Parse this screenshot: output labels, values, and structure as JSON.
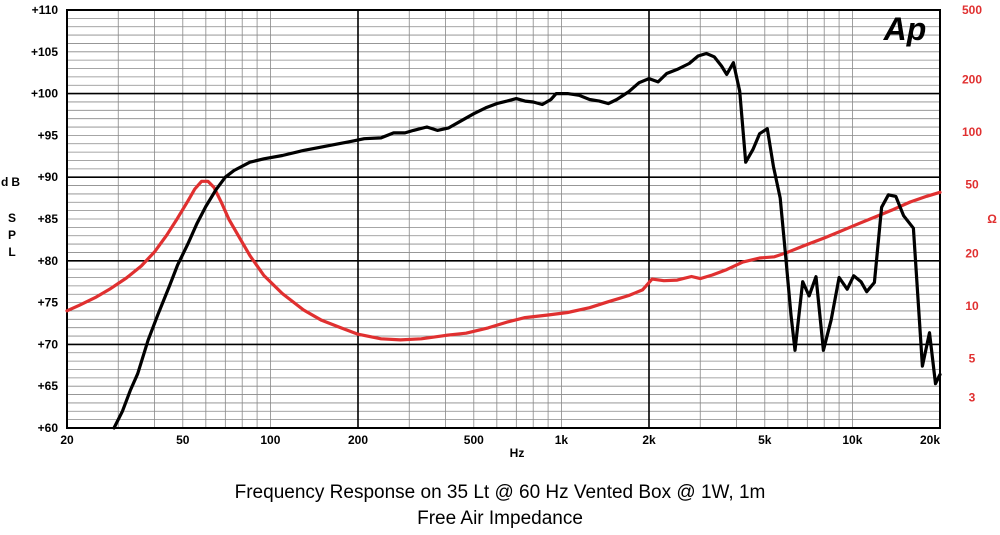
{
  "chart_data": {
    "type": "line",
    "title": "Frequency Response on 35 Lt @ 60 Hz Vented Box @ 1W, 1m",
    "subtitle": "Free Air Impedance",
    "xlabel": "Hz",
    "ylabel_left_lines": [
      "dB",
      "SPL"
    ],
    "ylabel_right": "Ω",
    "logo": "Ap",
    "x_scale": "log",
    "xlim": [
      20,
      20000
    ],
    "ylim_left": [
      60,
      110
    ],
    "ylim_right": [
      2,
      500
    ],
    "y_right_scale": "log",
    "grid": true,
    "x_tick_labels": [
      {
        "v": 20,
        "t": "20"
      },
      {
        "v": 50,
        "t": "50"
      },
      {
        "v": 100,
        "t": "100"
      },
      {
        "v": 200,
        "t": "200"
      },
      {
        "v": 500,
        "t": "500"
      },
      {
        "v": 1000,
        "t": "1k"
      },
      {
        "v": 2000,
        "t": "2k"
      },
      {
        "v": 5000,
        "t": "5k"
      },
      {
        "v": 10000,
        "t": "10k"
      },
      {
        "v": 20000,
        "t": "20k"
      }
    ],
    "y_left_tick_labels": [
      {
        "v": 110,
        "t": "+110"
      },
      {
        "v": 105,
        "t": "+105"
      },
      {
        "v": 100,
        "t": "+100"
      },
      {
        "v": 95,
        "t": "+95"
      },
      {
        "v": 90,
        "t": "+90"
      },
      {
        "v": 85,
        "t": "+85"
      },
      {
        "v": 80,
        "t": "+80"
      },
      {
        "v": 75,
        "t": "+75"
      },
      {
        "v": 70,
        "t": "+70"
      },
      {
        "v": 65,
        "t": "+65"
      },
      {
        "v": 60,
        "t": "+60"
      }
    ],
    "y_right_tick_labels": [
      {
        "v": 500,
        "t": "500"
      },
      {
        "v": 200,
        "t": "200"
      },
      {
        "v": 100,
        "t": "100"
      },
      {
        "v": 50,
        "t": "50"
      },
      {
        "v": 20,
        "t": "20"
      },
      {
        "v": 10,
        "t": "10"
      },
      {
        "v": 5,
        "t": "5"
      },
      {
        "v": 3,
        "t": "3"
      }
    ],
    "series": [
      {
        "name": "Frequency Response",
        "color": "#000000",
        "axis": "left",
        "points": [
          [
            29,
            60
          ],
          [
            31,
            62
          ],
          [
            33,
            64.5
          ],
          [
            35,
            66.5
          ],
          [
            38,
            70.5
          ],
          [
            41,
            73.5
          ],
          [
            45,
            77
          ],
          [
            48,
            79.5
          ],
          [
            52,
            82
          ],
          [
            56,
            84.5
          ],
          [
            60,
            86.5
          ],
          [
            65,
            88.5
          ],
          [
            70,
            90
          ],
          [
            75,
            90.8
          ],
          [
            85,
            91.8
          ],
          [
            95,
            92.2
          ],
          [
            110,
            92.6
          ],
          [
            130,
            93.2
          ],
          [
            160,
            93.8
          ],
          [
            190,
            94.3
          ],
          [
            210,
            94.6
          ],
          [
            240,
            94.7
          ],
          [
            265,
            95.3
          ],
          [
            290,
            95.3
          ],
          [
            310,
            95.6
          ],
          [
            345,
            96
          ],
          [
            375,
            95.6
          ],
          [
            410,
            95.9
          ],
          [
            450,
            96.7
          ],
          [
            500,
            97.6
          ],
          [
            550,
            98.3
          ],
          [
            600,
            98.8
          ],
          [
            650,
            99.1
          ],
          [
            700,
            99.4
          ],
          [
            750,
            99.1
          ],
          [
            800,
            99
          ],
          [
            860,
            98.7
          ],
          [
            920,
            99.3
          ],
          [
            960,
            100
          ],
          [
            1050,
            100
          ],
          [
            1150,
            99.8
          ],
          [
            1250,
            99.3
          ],
          [
            1350,
            99.1
          ],
          [
            1450,
            98.8
          ],
          [
            1550,
            99.3
          ],
          [
            1700,
            100.2
          ],
          [
            1850,
            101.3
          ],
          [
            2000,
            101.8
          ],
          [
            2150,
            101.4
          ],
          [
            2300,
            102.4
          ],
          [
            2500,
            102.9
          ],
          [
            2750,
            103.6
          ],
          [
            2950,
            104.5
          ],
          [
            3150,
            104.8
          ],
          [
            3350,
            104.4
          ],
          [
            3550,
            103.3
          ],
          [
            3700,
            102.3
          ],
          [
            3900,
            103.7
          ],
          [
            4100,
            100.3
          ],
          [
            4300,
            91.8
          ],
          [
            4550,
            93.3
          ],
          [
            4800,
            95.2
          ],
          [
            5100,
            95.8
          ],
          [
            5350,
            91.3
          ],
          [
            5650,
            87.5
          ],
          [
            5900,
            80.5
          ],
          [
            6150,
            73.5
          ],
          [
            6350,
            69.3
          ],
          [
            6750,
            77.5
          ],
          [
            7100,
            75.8
          ],
          [
            7500,
            78.1
          ],
          [
            7950,
            69.3
          ],
          [
            8450,
            72.9
          ],
          [
            9000,
            78
          ],
          [
            9600,
            76.6
          ],
          [
            10100,
            78.2
          ],
          [
            10700,
            77.5
          ],
          [
            11200,
            76.3
          ],
          [
            11900,
            77.4
          ],
          [
            12600,
            86.4
          ],
          [
            13300,
            87.9
          ],
          [
            14100,
            87.7
          ],
          [
            15000,
            85.4
          ],
          [
            16200,
            83.9
          ],
          [
            17400,
            67.4
          ],
          [
            18400,
            71.4
          ],
          [
            19300,
            65.3
          ],
          [
            20000,
            66.4
          ]
        ]
      },
      {
        "name": "Free Air Impedance",
        "color": "#e03030",
        "axis": "right",
        "points": [
          [
            20,
            9.4
          ],
          [
            22,
            10.1
          ],
          [
            25,
            11.2
          ],
          [
            28,
            12.5
          ],
          [
            32,
            14.5
          ],
          [
            36,
            17
          ],
          [
            40,
            20.5
          ],
          [
            44,
            25.5
          ],
          [
            48,
            32
          ],
          [
            52,
            40
          ],
          [
            55,
            47
          ],
          [
            58,
            52
          ],
          [
            61,
            52
          ],
          [
            64,
            48
          ],
          [
            68,
            39
          ],
          [
            72,
            31.5
          ],
          [
            78,
            25
          ],
          [
            85,
            19.5
          ],
          [
            95,
            15
          ],
          [
            110,
            11.8
          ],
          [
            130,
            9.5
          ],
          [
            150,
            8.3
          ],
          [
            175,
            7.5
          ],
          [
            200,
            6.9
          ],
          [
            240,
            6.5
          ],
          [
            280,
            6.4
          ],
          [
            330,
            6.5
          ],
          [
            400,
            6.8
          ],
          [
            470,
            7
          ],
          [
            560,
            7.5
          ],
          [
            650,
            8.1
          ],
          [
            750,
            8.6
          ],
          [
            900,
            8.9
          ],
          [
            1050,
            9.2
          ],
          [
            1250,
            9.8
          ],
          [
            1450,
            10.6
          ],
          [
            1700,
            11.5
          ],
          [
            1900,
            12.4
          ],
          [
            2050,
            14.3
          ],
          [
            2250,
            14
          ],
          [
            2500,
            14.1
          ],
          [
            2800,
            14.8
          ],
          [
            3000,
            14.4
          ],
          [
            3300,
            15.1
          ],
          [
            3700,
            16.2
          ],
          [
            4200,
            17.9
          ],
          [
            4800,
            18.9
          ],
          [
            5400,
            19.2
          ],
          [
            6000,
            20.4
          ],
          [
            6900,
            22.4
          ],
          [
            8000,
            24.6
          ],
          [
            9200,
            27.1
          ],
          [
            10500,
            29.7
          ],
          [
            12000,
            32.5
          ],
          [
            13800,
            35.8
          ],
          [
            15800,
            39.6
          ],
          [
            18000,
            42.7
          ],
          [
            20000,
            45
          ]
        ]
      }
    ]
  }
}
